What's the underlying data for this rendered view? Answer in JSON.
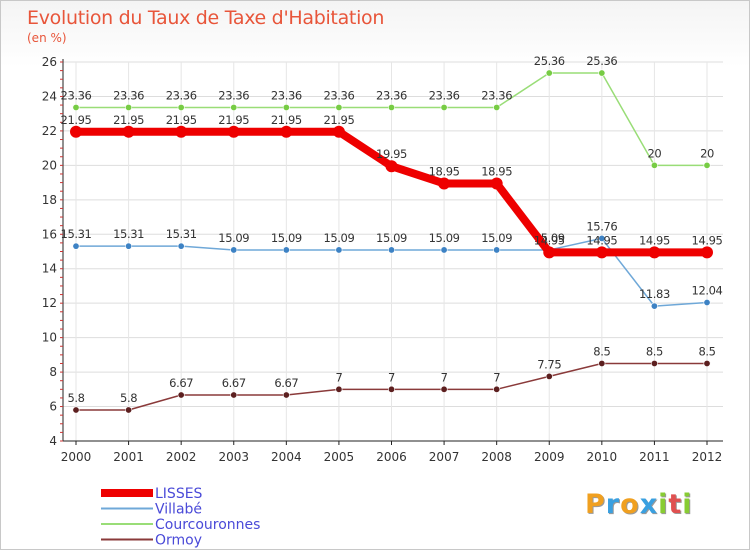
{
  "chart_data": {
    "type": "line",
    "title": "Evolution du Taux de Taxe d'Habitation",
    "unit_label": "(en %)",
    "x": [
      "2000",
      "2001",
      "2002",
      "2003",
      "2004",
      "2005",
      "2006",
      "2007",
      "2008",
      "2009",
      "2010",
      "2011",
      "2012"
    ],
    "ylim": [
      4,
      26
    ],
    "yticks": [
      4,
      6,
      8,
      10,
      12,
      14,
      16,
      18,
      20,
      22,
      24,
      26
    ],
    "grid": true,
    "legend_position": "bottom-left",
    "series": [
      {
        "name": "Courcouronnes",
        "color": "#99dd77",
        "dot": "#77cc44",
        "width": 1.5,
        "values": [
          23.36,
          23.36,
          23.36,
          23.36,
          23.36,
          23.36,
          23.36,
          23.36,
          23.36,
          25.36,
          25.36,
          20,
          20
        ],
        "labels": [
          "23.36",
          "23.36",
          "23.36",
          "23.36",
          "23.36",
          "23.36",
          "23.36",
          "23.36",
          "23.36",
          "25.36",
          "25.36",
          "20",
          "20"
        ]
      },
      {
        "name": "Villabé",
        "color": "#6fa8d8",
        "dot": "#3d82c4",
        "width": 1.5,
        "values": [
          15.31,
          15.31,
          15.31,
          15.09,
          15.09,
          15.09,
          15.09,
          15.09,
          15.09,
          15.09,
          15.76,
          11.83,
          12.04
        ],
        "labels": [
          "15.31",
          "15.31",
          "15.31",
          "15.09",
          "15.09",
          "15.09",
          "15.09",
          "15.09",
          "15.09",
          "15.09",
          "15.76",
          "11.83",
          "12.04"
        ]
      },
      {
        "name": "Ormoy",
        "color": "#8a3a3a",
        "dot": "#5c1f1f",
        "width": 1.5,
        "values": [
          5.8,
          5.8,
          6.67,
          6.67,
          6.67,
          7,
          7,
          7,
          7,
          7.75,
          8.5,
          8.5,
          8.5
        ],
        "labels": [
          "5.8",
          "5.8",
          "6.67",
          "6.67",
          "6.67",
          "7",
          "7",
          "7",
          "7",
          "7.75",
          "8.5",
          "8.5",
          "8.5"
        ]
      },
      {
        "name": "LISSES",
        "color": "#ee0000",
        "dot": "#ee0000",
        "width": 8,
        "values": [
          21.95,
          21.95,
          21.95,
          21.95,
          21.95,
          21.95,
          19.95,
          18.95,
          18.95,
          14.95,
          14.95,
          14.95,
          14.95
        ],
        "labels": [
          "21.95",
          "21.95",
          "21.95",
          "21.95",
          "21.95",
          "21.95",
          "19.95",
          "18.95",
          "18.95",
          "14.95",
          "14.95",
          "14.95",
          "14.95"
        ]
      }
    ],
    "legend_order": [
      "LISSES",
      "Villabé",
      "Courcouronnes",
      "Ormoy"
    ]
  },
  "branding": {
    "logo_letters": [
      "P",
      "r",
      "o",
      "x",
      "i",
      "t",
      "i"
    ],
    "logo_colors": [
      "#f0a020",
      "#3aa0e0",
      "#f0a020",
      "#3aa0e0",
      "#88cc33",
      "#e05050",
      "#88cc33"
    ]
  }
}
